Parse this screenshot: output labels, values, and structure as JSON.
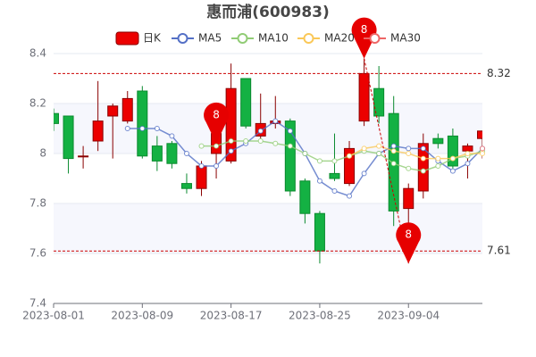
{
  "chart_data": {
    "type": "candlestick",
    "title": "惠而浦(600983)",
    "categories": [
      "2023-08-01",
      null,
      null,
      null,
      null,
      null,
      "2023-08-09",
      null,
      null,
      null,
      null,
      null,
      "2023-08-17",
      null,
      null,
      null,
      null,
      null,
      "2023-08-25",
      null,
      null,
      null,
      null,
      null,
      "2023-09-04",
      null,
      null,
      null,
      null,
      null
    ],
    "ylim": [
      7.4,
      8.4
    ],
    "yticks": [
      7.4,
      7.6,
      7.8,
      8,
      8.2,
      8.4
    ],
    "grid": true,
    "series": [
      {
        "name": "日K",
        "up_color": "#ec0000",
        "up_border": "#8a0000",
        "down_color": "#14b143",
        "down_border": "#0a8a2e",
        "open": [
          8.16,
          8.15,
          7.99,
          8.05,
          8.15,
          8.13,
          8.25,
          8.03,
          8.04,
          7.88,
          7.86,
          8.0,
          7.97,
          8.3,
          8.07,
          8.12,
          8.13,
          7.89,
          7.76,
          7.92,
          7.88,
          8.13,
          8.26,
          8.16,
          7.78,
          7.85,
          8.06,
          8.07,
          8.01,
          8.06
        ],
        "close": [
          8.12,
          7.98,
          7.99,
          8.13,
          8.19,
          8.22,
          7.99,
          7.97,
          7.96,
          7.86,
          7.95,
          8.08,
          8.26,
          8.11,
          8.12,
          8.13,
          7.85,
          7.76,
          7.61,
          7.9,
          8.02,
          8.32,
          8.15,
          7.77,
          7.86,
          8.04,
          8.04,
          7.95,
          8.03,
          8.09
        ],
        "low": [
          8.09,
          7.92,
          7.94,
          8.01,
          7.98,
          8.12,
          7.98,
          7.93,
          7.94,
          7.84,
          7.83,
          7.9,
          7.96,
          8.1,
          8.06,
          8.1,
          7.83,
          7.72,
          7.56,
          7.89,
          7.87,
          8.11,
          8.12,
          7.71,
          7.56,
          7.82,
          8.02,
          7.94,
          7.9,
          7.98
        ],
        "high": [
          8.18,
          8.15,
          8.03,
          8.29,
          8.2,
          8.25,
          8.27,
          8.07,
          8.05,
          7.92,
          7.97,
          8.12,
          8.36,
          8.3,
          8.24,
          8.23,
          8.14,
          7.9,
          7.77,
          8.08,
          8.05,
          8.38,
          8.35,
          8.23,
          7.88,
          8.08,
          8.08,
          8.1,
          8.04,
          8.09
        ]
      },
      {
        "name": "MA5",
        "color": "#5470c6",
        "values": [
          null,
          null,
          null,
          null,
          null,
          8.1,
          8.1,
          8.1,
          8.07,
          8.0,
          7.95,
          7.95,
          8.01,
          8.04,
          8.09,
          8.13,
          8.09,
          8.0,
          7.89,
          7.85,
          7.83,
          7.92,
          8.0,
          8.03,
          8.02,
          8.02,
          7.97,
          7.93,
          7.96,
          8.02
        ]
      },
      {
        "name": "MA10",
        "color": "#91cc75",
        "values": [
          null,
          null,
          null,
          null,
          null,
          null,
          null,
          null,
          null,
          null,
          8.03,
          8.03,
          8.05,
          8.05,
          8.05,
          8.04,
          8.03,
          8.0,
          7.97,
          7.97,
          7.99,
          8.01,
          8.0,
          7.96,
          7.94,
          7.93,
          7.95,
          7.98,
          7.99,
          8.01
        ]
      },
      {
        "name": "MA20",
        "color": "#fac858",
        "values": [
          null,
          null,
          null,
          null,
          null,
          null,
          null,
          null,
          null,
          null,
          null,
          null,
          null,
          null,
          null,
          null,
          null,
          null,
          null,
          null,
          7.99,
          8.02,
          8.03,
          8.01,
          8.0,
          7.98,
          7.98,
          7.98,
          8.0,
          8.0
        ]
      },
      {
        "name": "MA30",
        "color": "#ee6666",
        "values": [
          null,
          null,
          null,
          null,
          null,
          null,
          null,
          null,
          null,
          null,
          null,
          null,
          null,
          null,
          null,
          null,
          null,
          null,
          null,
          null,
          null,
          null,
          null,
          null,
          null,
          null,
          null,
          null,
          null,
          8.02
        ]
      }
    ],
    "mark_lines": [
      8.32,
      7.61
    ],
    "mark_points": [
      {
        "index": 11,
        "value": 8.04,
        "label": "8"
      },
      {
        "index": 21,
        "value": 8.38,
        "label": "8"
      },
      {
        "index": 24,
        "value": 7.56,
        "label": "8"
      }
    ]
  }
}
